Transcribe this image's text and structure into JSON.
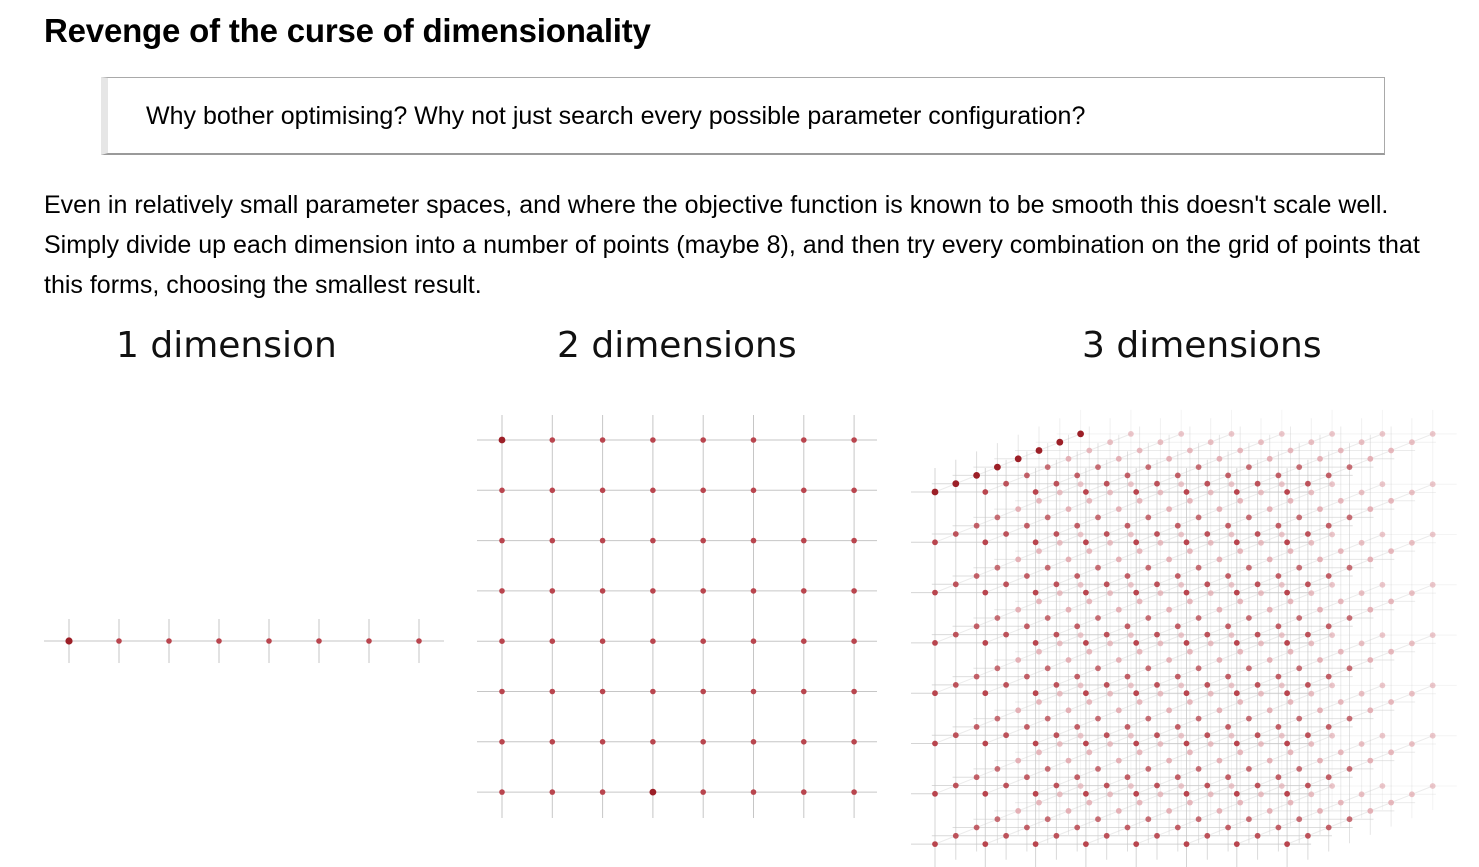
{
  "heading": "Revenge of the curse of dimensionality",
  "quote": "Why bother optimising? Why not just search every possible parameter configuration?",
  "paragraph": "Even in relatively small parameter spaces, and where the objective function is known to be smooth this doesn't scale well. Simply divide up each dimension into a number of points (maybe 8), and then try every combination on the grid of points that this forms, choosing the smallest result.",
  "figures": {
    "one_d": {
      "label": "1 dimension",
      "points_per_dimension": 8
    },
    "two_d": {
      "label": "2 dimensions",
      "points_per_dimension": 8
    },
    "three_d": {
      "label": "3 dimensions",
      "points_per_dimension": 8
    }
  },
  "colors": {
    "point": "#b9454e",
    "point_highlight": "#9c1f27",
    "point_faded": "#e3aeb3",
    "grid_line": "#c6c6c6"
  }
}
